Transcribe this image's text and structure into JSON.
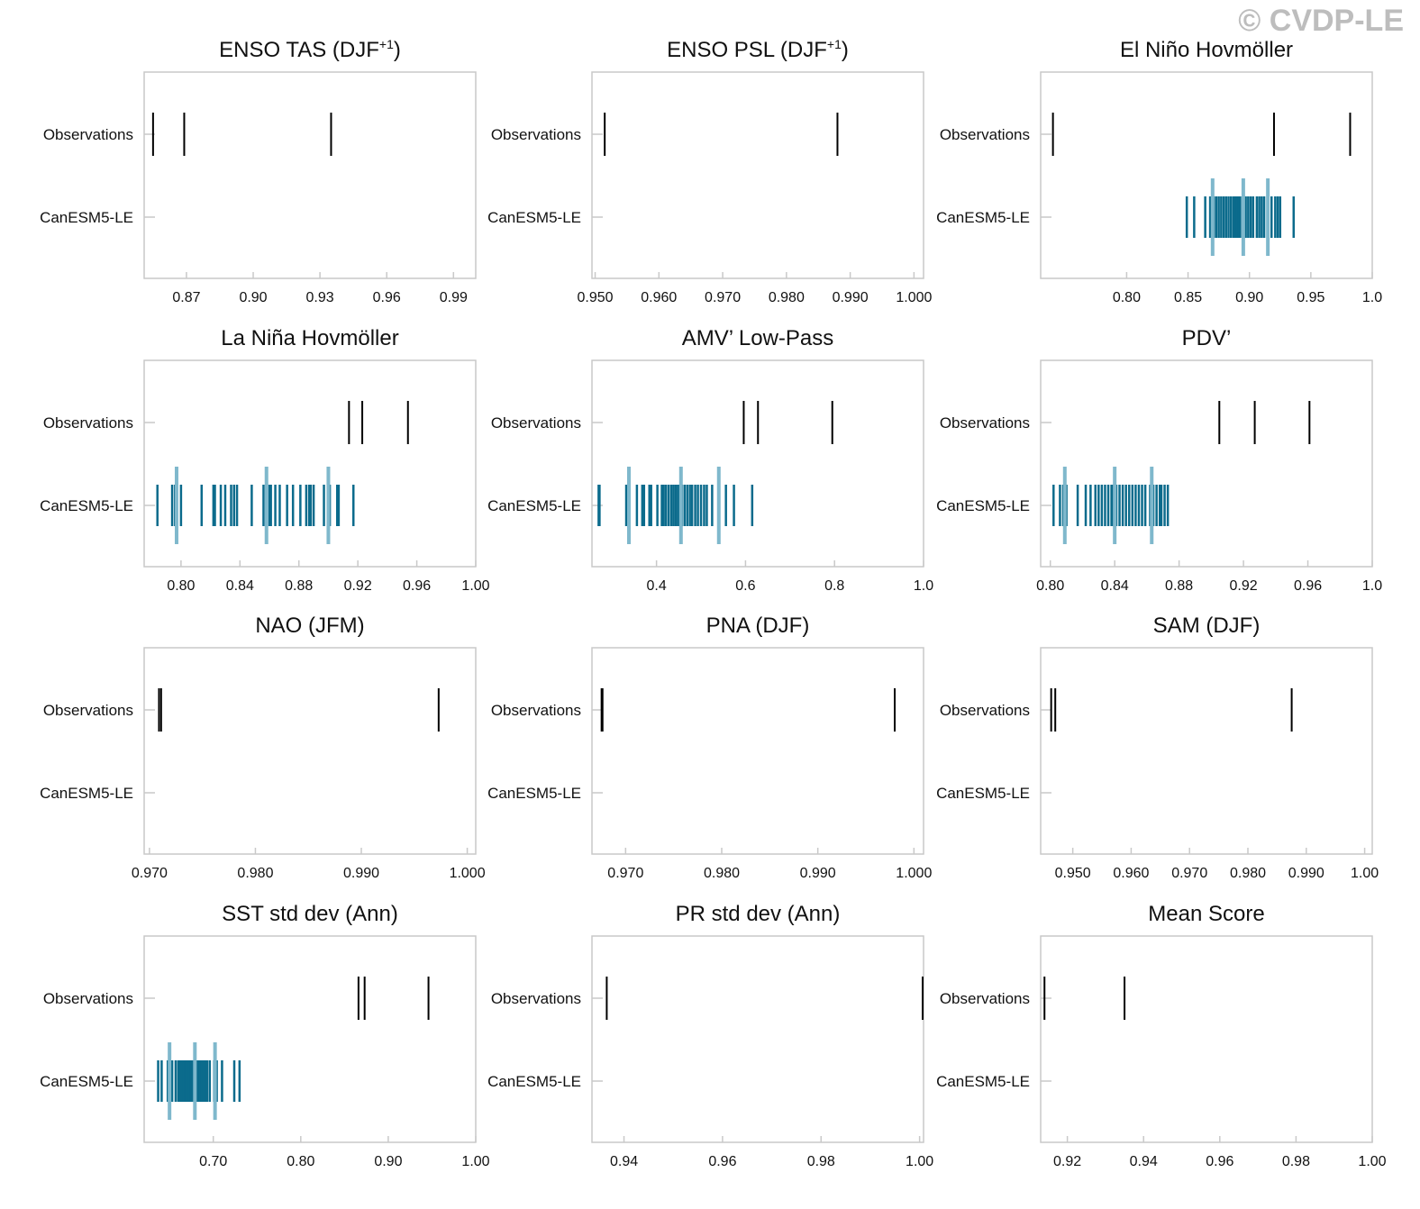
{
  "watermark": "© CVDP-LE",
  "colors": {
    "obs": "#000000",
    "ens": "#0b6b8c",
    "ens_light": "#7fb8cc",
    "frame": "#c9c9c9"
  },
  "row_labels": [
    "Observations",
    "CanESM5-LE"
  ],
  "chart_data": [
    {
      "type": "strip",
      "title": "ENSO TAS (DJF",
      "title_sup": "+1",
      "title_end": ")",
      "xlim": [
        0.851,
        1.0
      ],
      "ticks": [
        0.87,
        0.9,
        0.93,
        0.96,
        0.99
      ],
      "tick_labels": [
        "0.87",
        "0.90",
        "0.93",
        "0.96",
        "0.99"
      ],
      "observations": [
        0.855,
        0.869,
        0.935
      ],
      "ensemble": [],
      "ensemble_highlight": []
    },
    {
      "type": "strip",
      "title": "ENSO PSL (DJF",
      "title_sup": "+1",
      "title_end": ")",
      "xlim": [
        0.9495,
        1.0015
      ],
      "ticks": [
        0.95,
        0.96,
        0.97,
        0.98,
        0.99,
        1.0
      ],
      "tick_labels": [
        "0.950",
        "0.960",
        "0.970",
        "0.980",
        "0.990",
        "1.000"
      ],
      "observations": [
        0.9515,
        0.988
      ],
      "ensemble": [],
      "ensemble_highlight": []
    },
    {
      "type": "strip",
      "title": "El Niño Hovmöller",
      "xlim": [
        0.73,
        1.0
      ],
      "ticks": [
        0.8,
        0.85,
        0.9,
        0.95,
        1.0
      ],
      "tick_labels": [
        "0.80",
        "0.85",
        "0.90",
        "0.95",
        "1.0"
      ],
      "observations": [
        0.74,
        0.92,
        0.982
      ],
      "ensemble": [
        0.849,
        0.855,
        0.864,
        0.868,
        0.871,
        0.873,
        0.875,
        0.877,
        0.879,
        0.881,
        0.883,
        0.885,
        0.887,
        0.888,
        0.889,
        0.89,
        0.891,
        0.892,
        0.894,
        0.895,
        0.897,
        0.899,
        0.901,
        0.903,
        0.906,
        0.908,
        0.91,
        0.912,
        0.915,
        0.918,
        0.921,
        0.923,
        0.925,
        0.936
      ],
      "ensemble_highlight": [
        0.87,
        0.895,
        0.915
      ]
    },
    {
      "type": "strip",
      "title": "La Niña Hovmöller",
      "xlim": [
        0.775,
        1.0
      ],
      "ticks": [
        0.8,
        0.84,
        0.88,
        0.92,
        0.96,
        1.0
      ],
      "tick_labels": [
        "0.80",
        "0.84",
        "0.88",
        "0.92",
        "0.96",
        "1.00"
      ],
      "observations": [
        0.914,
        0.923,
        0.954
      ],
      "ensemble": [
        0.784,
        0.794,
        0.796,
        0.8,
        0.814,
        0.822,
        0.823,
        0.827,
        0.83,
        0.834,
        0.836,
        0.838,
        0.848,
        0.856,
        0.86,
        0.861,
        0.864,
        0.867,
        0.872,
        0.876,
        0.881,
        0.885,
        0.887,
        0.888,
        0.89,
        0.897,
        0.901,
        0.906,
        0.907,
        0.917
      ],
      "ensemble_highlight": [
        0.797,
        0.858,
        0.9
      ]
    },
    {
      "type": "strip",
      "title": "AMV’ Low-Pass",
      "xlim": [
        0.255,
        1.0
      ],
      "ticks": [
        0.4,
        0.6,
        0.8,
        1.0
      ],
      "tick_labels": [
        "0.4",
        "0.6",
        "0.8",
        "1.0"
      ],
      "observations": [
        0.596,
        0.628,
        0.795
      ],
      "ensemble": [
        0.27,
        0.272,
        0.332,
        0.338,
        0.356,
        0.368,
        0.372,
        0.384,
        0.388,
        0.402,
        0.412,
        0.416,
        0.421,
        0.427,
        0.433,
        0.438,
        0.443,
        0.448,
        0.452,
        0.457,
        0.463,
        0.469,
        0.475,
        0.48,
        0.487,
        0.493,
        0.5,
        0.507,
        0.513,
        0.525,
        0.54,
        0.556,
        0.574,
        0.615
      ],
      "ensemble_highlight": [
        0.338,
        0.455,
        0.54
      ]
    },
    {
      "type": "strip",
      "title": "PDV’",
      "xlim": [
        0.794,
        1.0
      ],
      "ticks": [
        0.8,
        0.84,
        0.88,
        0.92,
        0.96,
        1.0
      ],
      "tick_labels": [
        "0.80",
        "0.84",
        "0.88",
        "0.92",
        "0.96",
        "1.0"
      ],
      "observations": [
        0.905,
        0.927,
        0.961
      ],
      "ensemble": [
        0.802,
        0.806,
        0.808,
        0.81,
        0.817,
        0.822,
        0.825,
        0.828,
        0.83,
        0.832,
        0.834,
        0.836,
        0.838,
        0.839,
        0.84,
        0.841,
        0.843,
        0.845,
        0.847,
        0.849,
        0.851,
        0.853,
        0.855,
        0.857,
        0.859,
        0.862,
        0.864,
        0.866,
        0.868,
        0.869,
        0.871,
        0.873
      ],
      "ensemble_highlight": [
        0.809,
        0.84,
        0.863
      ]
    },
    {
      "type": "strip",
      "title": "NAO (JFM)",
      "xlim": [
        0.9695,
        1.0008
      ],
      "ticks": [
        0.97,
        0.98,
        0.99,
        1.0
      ],
      "tick_labels": [
        "0.970",
        "0.980",
        "0.990",
        "1.000"
      ],
      "observations": [
        0.9709,
        0.9711,
        0.9973
      ],
      "ensemble": [],
      "ensemble_highlight": []
    },
    {
      "type": "strip",
      "title": "PNA (DJF)",
      "xlim": [
        0.9665,
        1.001
      ],
      "ticks": [
        0.97,
        0.98,
        0.99,
        1.0
      ],
      "tick_labels": [
        "0.970",
        "0.980",
        "0.990",
        "1.000"
      ],
      "observations": [
        0.9675,
        0.9676,
        0.998
      ],
      "ensemble": [],
      "ensemble_highlight": []
    },
    {
      "type": "strip",
      "title": "SAM (DJF)",
      "xlim": [
        0.9445,
        1.0013
      ],
      "ticks": [
        0.95,
        0.96,
        0.97,
        0.98,
        0.99,
        1.0
      ],
      "tick_labels": [
        "0.950",
        "0.960",
        "0.970",
        "0.980",
        "0.990",
        "1.00"
      ],
      "observations": [
        0.9463,
        0.947,
        0.9875
      ],
      "ensemble": [],
      "ensemble_highlight": []
    },
    {
      "type": "strip",
      "title": "SST std dev (Ann)",
      "xlim": [
        0.621,
        1.0
      ],
      "ticks": [
        0.7,
        0.8,
        0.9,
        1.0
      ],
      "tick_labels": [
        "0.70",
        "0.80",
        "0.90",
        "1.00"
      ],
      "observations": [
        0.866,
        0.873,
        0.946
      ],
      "ensemble": [
        0.637,
        0.641,
        0.648,
        0.653,
        0.657,
        0.66,
        0.662,
        0.664,
        0.666,
        0.668,
        0.669,
        0.671,
        0.672,
        0.674,
        0.675,
        0.677,
        0.678,
        0.679,
        0.681,
        0.682,
        0.684,
        0.685,
        0.687,
        0.689,
        0.691,
        0.693,
        0.696,
        0.701,
        0.704,
        0.71,
        0.724,
        0.73
      ],
      "ensemble_highlight": [
        0.65,
        0.679,
        0.702
      ]
    },
    {
      "type": "strip",
      "title": "PR std dev (Ann)",
      "xlim": [
        0.9335,
        1.0008
      ],
      "ticks": [
        0.94,
        0.96,
        0.98,
        1.0
      ],
      "tick_labels": [
        "0.94",
        "0.96",
        "0.98",
        "1.00"
      ],
      "observations": [
        0.9365,
        1.0007
      ],
      "ensemble": [],
      "ensemble_highlight": []
    },
    {
      "type": "strip",
      "title": "Mean Score",
      "xlim": [
        0.913,
        1.0
      ],
      "ticks": [
        0.92,
        0.94,
        0.96,
        0.98,
        1.0
      ],
      "tick_labels": [
        "0.92",
        "0.94",
        "0.96",
        "0.98",
        "1.00"
      ],
      "observations": [
        0.914,
        0.935
      ],
      "ensemble": [],
      "ensemble_highlight": []
    }
  ]
}
